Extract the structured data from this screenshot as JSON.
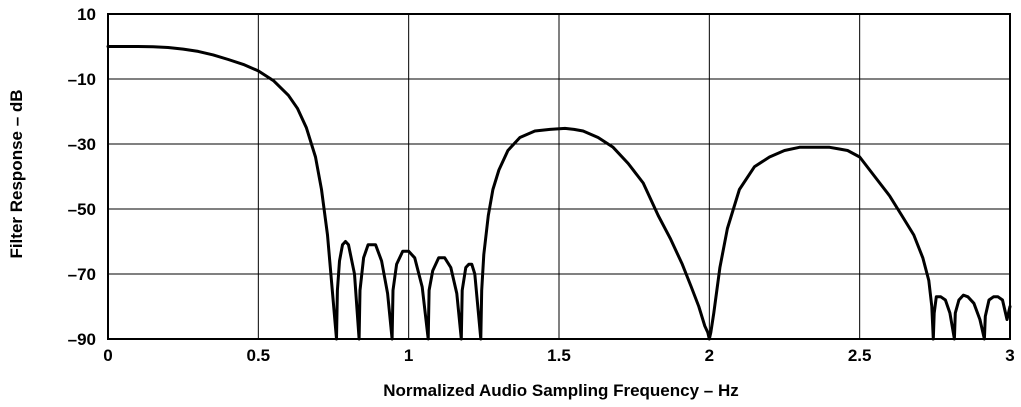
{
  "chart_data": {
    "type": "line",
    "title": "",
    "xlabel": "Normalized Audio Sampling Frequency – Hz",
    "ylabel": "Filter Response – dB",
    "xlim": [
      0,
      3
    ],
    "ylim": [
      -90,
      10
    ],
    "x_ticks": [
      0,
      0.5,
      1,
      1.5,
      2,
      2.5,
      3
    ],
    "x_tick_labels": [
      "0",
      "0.5",
      "1",
      "1.5",
      "2",
      "2.5",
      "3"
    ],
    "y_ticks": [
      10,
      -10,
      -30,
      -50,
      -70,
      -90
    ],
    "y_tick_labels": [
      "10",
      "–10",
      "–30",
      "–50",
      "–70",
      "–90"
    ],
    "grid": true,
    "legend": "none",
    "line_color": "#000000",
    "series": [
      {
        "x": [
          0,
          0.05,
          0.1,
          0.15,
          0.2,
          0.25,
          0.3,
          0.35,
          0.4,
          0.45,
          0.5,
          0.55,
          0.6,
          0.63,
          0.66,
          0.69,
          0.71,
          0.73,
          0.745,
          0.76,
          0.763,
          0.77,
          0.78,
          0.79,
          0.8,
          0.82,
          0.835,
          0.838,
          0.85,
          0.865,
          0.89,
          0.91,
          0.93,
          0.945,
          0.948,
          0.96,
          0.98,
          1.0,
          1.02,
          1.045,
          1.065,
          1.068,
          1.08,
          1.1,
          1.12,
          1.14,
          1.16,
          1.175,
          1.178,
          1.19,
          1.2,
          1.21,
          1.22,
          1.24,
          1.243,
          1.25,
          1.265,
          1.28,
          1.3,
          1.33,
          1.37,
          1.42,
          1.47,
          1.52,
          1.55,
          1.58,
          1.63,
          1.68,
          1.73,
          1.78,
          1.83,
          1.87,
          1.91,
          1.94,
          1.965,
          1.985,
          1.995,
          2.0,
          2.005,
          2.015,
          2.035,
          2.06,
          2.1,
          2.15,
          2.2,
          2.25,
          2.3,
          2.35,
          2.4,
          2.43,
          2.46,
          2.5,
          2.55,
          2.6,
          2.64,
          2.68,
          2.71,
          2.73,
          2.74,
          2.745,
          2.748,
          2.755,
          2.77,
          2.785,
          2.8,
          2.815,
          2.818,
          2.83,
          2.845,
          2.86,
          2.88,
          2.9,
          2.915,
          2.918,
          2.93,
          2.945,
          2.96,
          2.975,
          2.99,
          3.0
        ],
        "y": [
          0,
          0,
          0,
          -0.1,
          -0.3,
          -0.8,
          -1.5,
          -2.6,
          -4,
          -5.5,
          -7.5,
          -10.5,
          -15,
          -19,
          -25,
          -34,
          -44,
          -58,
          -74,
          -90,
          -75,
          -66,
          -61,
          -60,
          -61,
          -70,
          -90,
          -75,
          -65,
          -61,
          -61,
          -66,
          -76,
          -90,
          -75,
          -67,
          -63,
          -63,
          -65,
          -74,
          -90,
          -75,
          -69,
          -65,
          -65,
          -68,
          -76,
          -90,
          -75,
          -68,
          -67,
          -67,
          -70,
          -90,
          -75,
          -64,
          -52,
          -44,
          -38,
          -32,
          -28,
          -26,
          -25.5,
          -25.2,
          -25.5,
          -26,
          -28,
          -31,
          -36,
          -42,
          -52,
          -59,
          -67,
          -74,
          -80,
          -86,
          -88,
          -90,
          -88,
          -82,
          -68,
          -56,
          -44,
          -37,
          -34,
          -32,
          -31,
          -31,
          -31,
          -31.5,
          -32,
          -34,
          -40,
          -46,
          -52,
          -58,
          -65,
          -72,
          -80,
          -90,
          -82,
          -77,
          -77,
          -78,
          -82,
          -90,
          -82,
          -78,
          -76.5,
          -77,
          -79,
          -84,
          -90,
          -83,
          -78,
          -77,
          -77,
          -78,
          -84,
          -80
        ]
      }
    ]
  }
}
